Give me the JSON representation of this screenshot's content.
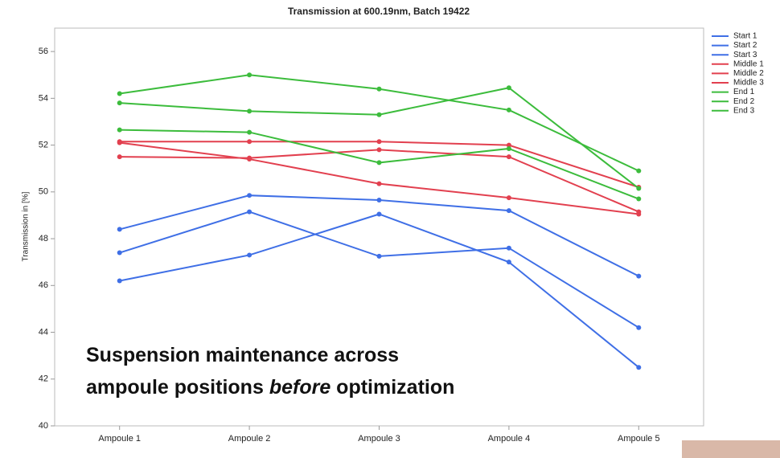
{
  "chart_data": {
    "type": "line",
    "title": "Transmission at 600.19nm, Batch 19422",
    "y_label": "Transmission in [%]",
    "categories": [
      "Ampoule 1",
      "Ampoule 2",
      "Ampoule 3",
      "Ampoule 4",
      "Ampoule 5"
    ],
    "series": [
      {
        "name": "Start 1",
        "color": "#3f6fe6",
        "values": [
          48.4,
          49.85,
          49.65,
          49.2,
          46.4
        ]
      },
      {
        "name": "Start 2",
        "color": "#3f6fe6",
        "values": [
          47.4,
          49.15,
          47.25,
          47.6,
          44.2
        ]
      },
      {
        "name": "Start 3",
        "color": "#3f6fe6",
        "values": [
          46.2,
          47.3,
          49.05,
          47.0,
          42.5
        ]
      },
      {
        "name": "Middle 1",
        "color": "#e2404f",
        "values": [
          52.15,
          52.15,
          52.15,
          52.0,
          50.2
        ]
      },
      {
        "name": "Middle 2",
        "color": "#e2404f",
        "values": [
          52.1,
          51.4,
          50.35,
          49.75,
          49.05
        ]
      },
      {
        "name": "Middle 3",
        "color": "#e2404f",
        "values": [
          51.5,
          51.45,
          51.8,
          51.5,
          49.15
        ]
      },
      {
        "name": "End 1",
        "color": "#3cbc3c",
        "values": [
          54.2,
          55.0,
          54.4,
          53.5,
          50.9
        ]
      },
      {
        "name": "End 2",
        "color": "#3cbc3c",
        "values": [
          53.8,
          53.45,
          53.3,
          54.45,
          50.15
        ]
      },
      {
        "name": "End 3",
        "color": "#3cbc3c",
        "values": [
          52.65,
          52.55,
          51.25,
          51.85,
          49.7
        ]
      }
    ],
    "ylim": [
      40,
      57
    ],
    "yticks": [
      40,
      42,
      44,
      46,
      48,
      50,
      52,
      54,
      56
    ],
    "legend": "right",
    "annotation": {
      "line1": "Suspension maintenance across",
      "line2_start": "ampoule positions",
      "emphasis": "before",
      "line2_end": "optimization"
    }
  }
}
